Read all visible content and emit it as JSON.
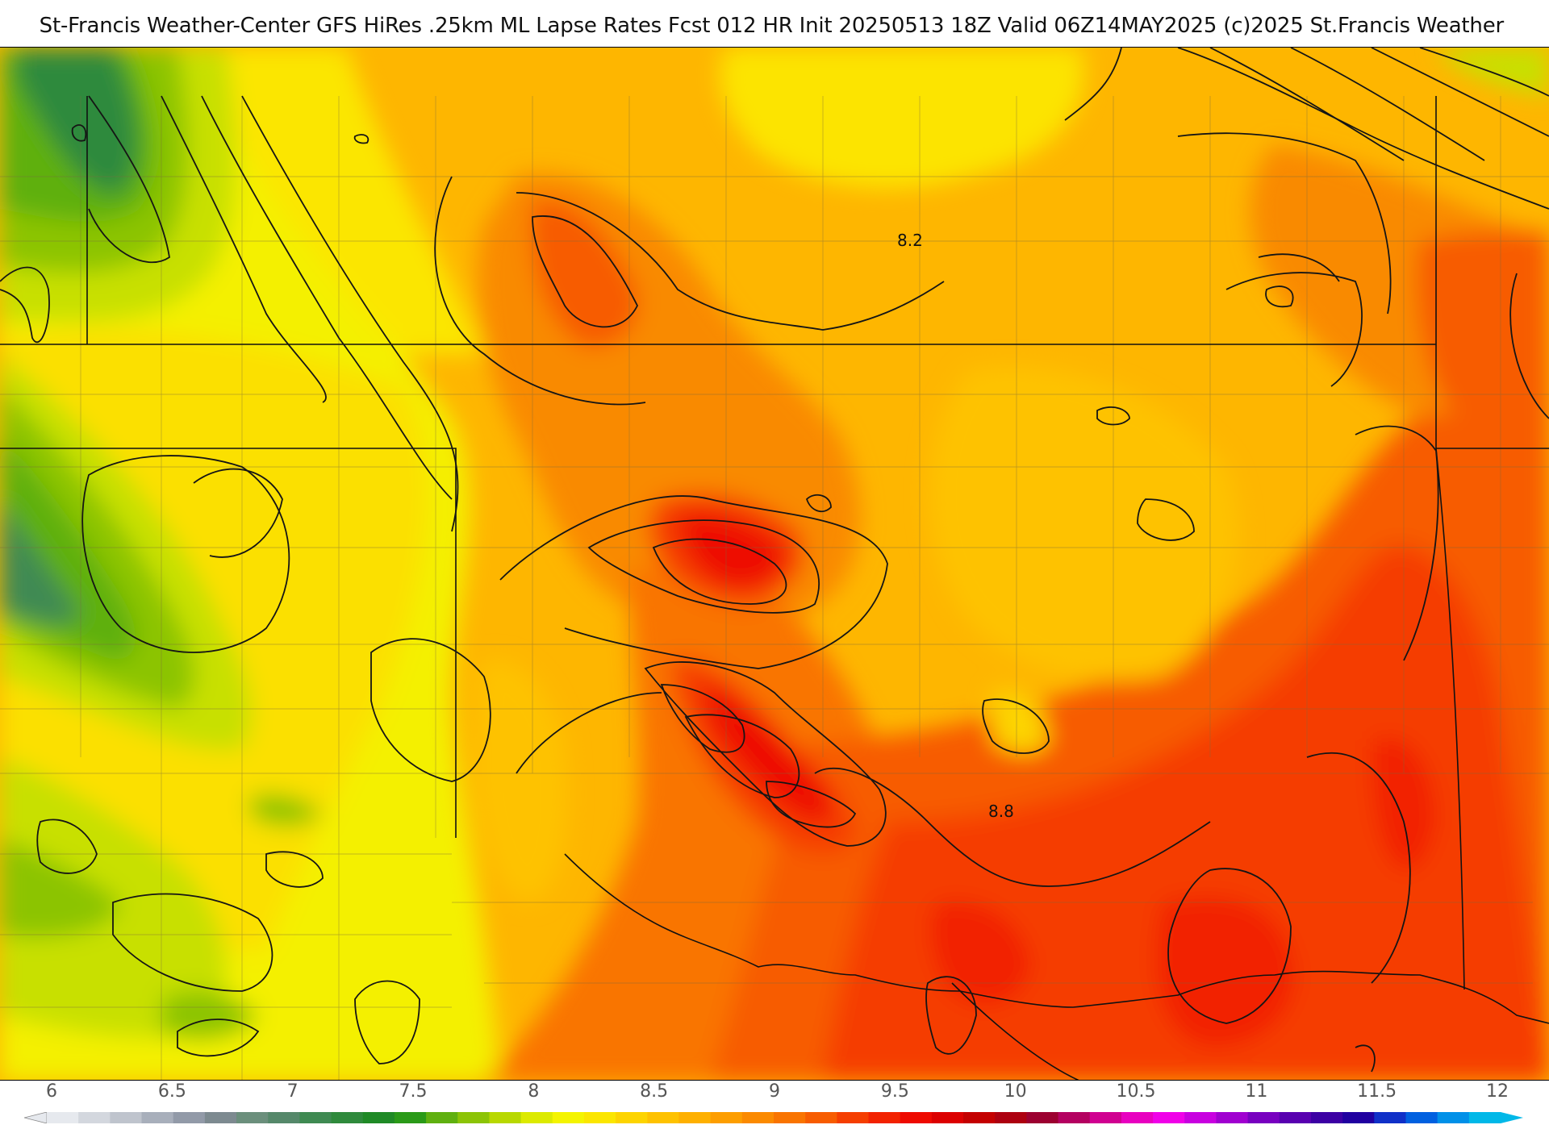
{
  "header": {
    "title": "St-Francis Weather-Center GFS HiRes .25km ML Lapse Rates  Fcst 012 HR Init 20250513 18Z  Valid 06Z14MAY2025    (c)2025 St.Francis Weather"
  },
  "map": {
    "contour_labels": [
      "8.2",
      "8.8"
    ]
  },
  "legend": {
    "ticks": [
      "6",
      "6.5",
      "7",
      "7.5",
      "8",
      "8.5",
      "9",
      "9.5",
      "10",
      "10.5",
      "11",
      "11.5",
      "12"
    ],
    "colors": [
      "#e6e9ee",
      "#d3d7de",
      "#bfc4cd",
      "#a8afbb",
      "#929aa8",
      "#7d8a90",
      "#6b8f7c",
      "#55886a",
      "#3f8a52",
      "#2f8a3c",
      "#1f8a26",
      "#2a9a18",
      "#5fb010",
      "#8cc406",
      "#b8d800",
      "#dcea00",
      "#f4f400",
      "#fbe600",
      "#fdd400",
      "#fec200",
      "#feb000",
      "#fd9e00",
      "#fb8a00",
      "#f97400",
      "#f75c00",
      "#f53e00",
      "#f22200",
      "#ee0a00",
      "#dc0000",
      "#c40000",
      "#ad0010",
      "#9c0030",
      "#b40060",
      "#d00090",
      "#e800c0",
      "#f000e8",
      "#c800e0",
      "#a000d0",
      "#7800c0",
      "#5800b0",
      "#3c00a4",
      "#2000a0",
      "#1030c8",
      "#0060e0",
      "#0090e8",
      "#00b8e8"
    ]
  }
}
